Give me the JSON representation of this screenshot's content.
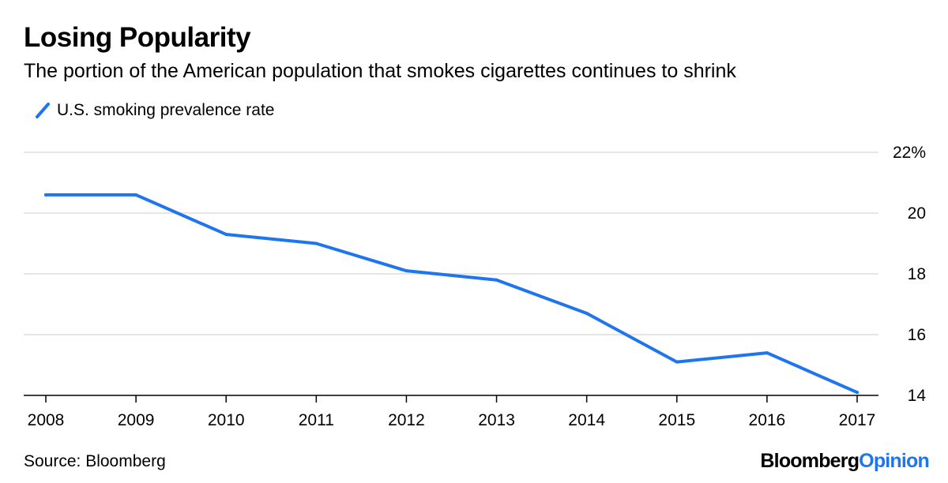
{
  "chart_data": {
    "type": "line",
    "title": "Losing Popularity",
    "subtitle": "The portion of the American population that smokes cigarettes continues to shrink",
    "x": [
      "2008",
      "2009",
      "2010",
      "2011",
      "2012",
      "2013",
      "2014",
      "2015",
      "2016",
      "2017"
    ],
    "series": [
      {
        "name": "U.S. smoking prevalence rate",
        "values": [
          20.6,
          20.6,
          19.3,
          19.0,
          18.1,
          17.8,
          16.7,
          15.1,
          15.4,
          14.1
        ],
        "color": "#1f75ee"
      }
    ],
    "yticks": [
      14,
      16,
      18,
      20,
      22
    ],
    "ytick_labels": [
      "14",
      "16",
      "18",
      "20",
      "22%"
    ],
    "ylim": [
      14,
      22
    ],
    "grid": true,
    "legend": "top-left",
    "xlabel": "",
    "ylabel": ""
  },
  "footer": {
    "source": "Source: Bloomberg",
    "brand_main": "Bloomberg",
    "brand_accent": "Opinion"
  }
}
